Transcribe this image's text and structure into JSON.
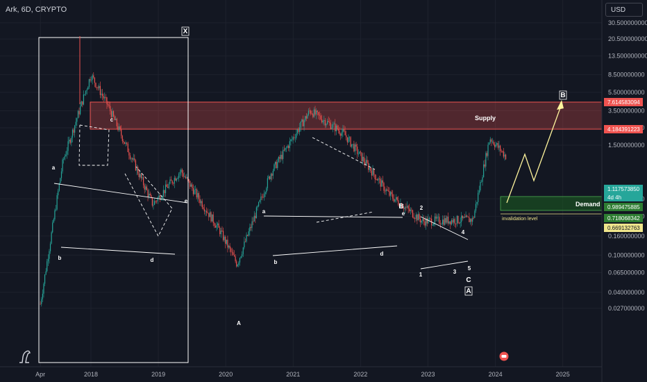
{
  "header": {
    "title": "Ark, 6D, CRYPTO",
    "currency": "USD"
  },
  "icons": {
    "logo": "tradingview-logo-icon",
    "event": "earnings-event-icon"
  },
  "colors": {
    "background": "#131722",
    "up": "#26a69a",
    "down": "#ef5350",
    "supply": "#ef5350",
    "demand": "#1b5e20",
    "annotation": "#ffffff",
    "arrow": "#fff59d",
    "invalidation": "#f0e68c"
  },
  "axes": {
    "price_ticks": [
      "30.500000000",
      "20.500000000",
      "13.500000000",
      "8.500000000",
      "5.500000000",
      "3.500000000",
      "2.300000000",
      "1.500000000",
      "0.400000000",
      "0.260000000",
      "0.160000000",
      "0.100000000",
      "0.065000000",
      "0.040000000",
      "0.027000000"
    ],
    "time_ticks": [
      "Apr",
      "2018",
      "2019",
      "2020",
      "2021",
      "2022",
      "2023",
      "2024",
      "2025"
    ],
    "scale": "log"
  },
  "price_labels": [
    {
      "value": "7.614583094",
      "kind": "supply"
    },
    {
      "value": "4.184391223",
      "kind": "supply"
    },
    {
      "value": "1.117573850",
      "kind": "current"
    },
    {
      "value": "4d 4h",
      "kind": "countdown"
    },
    {
      "value": "0.989475885",
      "kind": "demand"
    },
    {
      "value": "0.718068342",
      "kind": "demand"
    },
    {
      "value": "0.669132763",
      "kind": "invalidation"
    }
  ],
  "zones": {
    "supply": {
      "label": "Supply",
      "top": 7.614583094,
      "bottom": 4.184391223
    },
    "demand": {
      "label": "Demand",
      "top": 0.989475885,
      "bottom": 0.718068342
    },
    "invalidation": {
      "label": "invalidation level",
      "value": 0.669132763
    }
  },
  "wave_labels": [
    "X",
    "a",
    "b",
    "c",
    "d",
    "e",
    "A",
    "a",
    "b",
    "d",
    "e",
    "B",
    "1",
    "2",
    "3",
    "4",
    "5",
    "C",
    "A",
    "B"
  ],
  "chart_data": {
    "type": "candlestick",
    "title": "Ark, 6D, CRYPTO",
    "scale": "log",
    "ylim": [
      0.025,
      45
    ],
    "x_range": [
      "2017-04",
      "2025-06"
    ],
    "key_points": [
      {
        "date": "2017-04",
        "price": 0.03
      },
      {
        "date": "2017-08",
        "price": 1.0
      },
      {
        "date": "2018-01",
        "price": 8.5
      },
      {
        "date": "2018-04",
        "price": 4.0
      },
      {
        "date": "2018-12",
        "price": 0.35
      },
      {
        "date": "2019-05",
        "price": 0.8
      },
      {
        "date": "2019-12",
        "price": 0.18
      },
      {
        "date": "2020-03",
        "price": 0.08
      },
      {
        "date": "2020-09",
        "price": 0.75
      },
      {
        "date": "2021-04",
        "price": 3.5
      },
      {
        "date": "2021-10",
        "price": 2.0
      },
      {
        "date": "2022-06",
        "price": 0.45
      },
      {
        "date": "2022-12",
        "price": 0.23
      },
      {
        "date": "2023-09",
        "price": 0.24
      },
      {
        "date": "2023-12",
        "price": 1.8
      },
      {
        "date": "2024-03",
        "price": 1.12
      }
    ]
  }
}
